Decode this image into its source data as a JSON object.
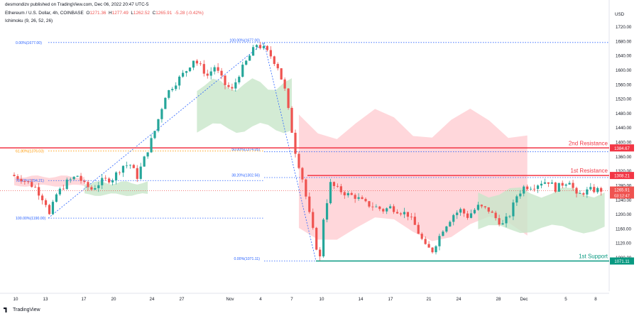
{
  "header": {
    "publisher": "desmondizv published on TradingView.com, Dec 06, 2022 20:47 UTC-5",
    "symbol": "Ethereum / U.S. Dollar, 4h, COINBASE",
    "open_label": "O",
    "open": "1271.36",
    "high_label": "H",
    "high": "1277.49",
    "low_label": "L",
    "low": "1262.52",
    "close_label": "C",
    "close": "1265.91",
    "change": "-5.28 (-0.42%)",
    "indicator": "Ichimoku (9, 26, 52, 26)",
    "currency": "USD"
  },
  "footer": {
    "brand": "TradingView"
  },
  "colors": {
    "up": "#26a69a",
    "down": "#ef5350",
    "fib_line": "#2962ff",
    "resistance": "#f23645",
    "support": "#089981",
    "cloud_bull": "#c8e6c9",
    "cloud_bear": "#ffcdd2"
  },
  "chart_data": {
    "type": "candlestick",
    "x_axis_labels": [
      "10",
      "13",
      "17",
      "20",
      "24",
      "27",
      "Nov",
      "4",
      "7",
      "10",
      "14",
      "17",
      "21",
      "24",
      "28",
      "Dec",
      "5",
      "8"
    ],
    "y_axis_ticks": [
      1080,
      1120,
      1160,
      1200,
      1240,
      1280,
      1320,
      1360,
      1400,
      1440,
      1480,
      1520,
      1560,
      1600,
      1640,
      1680,
      1720
    ],
    "ylim": [
      1060,
      1745
    ],
    "price_path": [
      [
        0,
        1310
      ],
      [
        3,
        1300
      ],
      [
        7,
        1275
      ],
      [
        10,
        1232
      ],
      [
        11,
        1198
      ],
      [
        13,
        1255
      ],
      [
        16,
        1290
      ],
      [
        19,
        1308
      ],
      [
        21,
        1282
      ],
      [
        23,
        1270
      ],
      [
        26,
        1293
      ],
      [
        29,
        1300
      ],
      [
        31,
        1325
      ],
      [
        32,
        1336
      ],
      [
        34,
        1338
      ],
      [
        36,
        1305
      ],
      [
        39,
        1380
      ],
      [
        41,
        1432
      ],
      [
        44,
        1530
      ],
      [
        46,
        1555
      ],
      [
        48,
        1578
      ],
      [
        50,
        1600
      ],
      [
        52,
        1630
      ],
      [
        54,
        1610
      ],
      [
        56,
        1585
      ],
      [
        58,
        1610
      ],
      [
        61,
        1560
      ],
      [
        63,
        1545
      ],
      [
        65,
        1590
      ],
      [
        68,
        1640
      ],
      [
        70,
        1672
      ],
      [
        72,
        1660
      ],
      [
        74,
        1640
      ],
      [
        76,
        1610
      ],
      [
        78,
        1545
      ],
      [
        81,
        1375
      ],
      [
        83,
        1300
      ],
      [
        85,
        1200
      ],
      [
        87,
        1110
      ],
      [
        88,
        1080
      ],
      [
        89,
        1190
      ],
      [
        91,
        1285
      ],
      [
        93,
        1270
      ],
      [
        96,
        1255
      ],
      [
        98,
        1250
      ],
      [
        101,
        1230
      ],
      [
        104,
        1220
      ],
      [
        106,
        1212
      ],
      [
        108,
        1220
      ],
      [
        110,
        1212
      ],
      [
        113,
        1200
      ],
      [
        115,
        1170
      ],
      [
        118,
        1110
      ],
      [
        120,
        1100
      ],
      [
        123,
        1160
      ],
      [
        126,
        1200
      ],
      [
        128,
        1212
      ],
      [
        130,
        1195
      ],
      [
        133,
        1222
      ],
      [
        136,
        1212
      ],
      [
        138,
        1190
      ],
      [
        140,
        1172
      ],
      [
        142,
        1200
      ],
      [
        144,
        1252
      ],
      [
        146,
        1276
      ],
      [
        149,
        1280
      ],
      [
        151,
        1290
      ],
      [
        153,
        1292
      ],
      [
        155,
        1272
      ],
      [
        157,
        1285
      ],
      [
        159,
        1295
      ],
      [
        161,
        1250
      ],
      [
        163,
        1262
      ],
      [
        165,
        1268
      ]
    ],
    "price_range": [
      1071.11,
      1677.0
    ],
    "fibonacci_levels_left": [
      {
        "label": "0.00%(1677.00)",
        "price": 1677.0
      },
      {
        "label": "61.80%(1376.03)",
        "price": 1376.03
      },
      {
        "label": "78.60%(1294.21)",
        "price": 1294.21
      },
      {
        "label": "100.00%(1190.00)",
        "price": 1190.0
      }
    ],
    "fibonacci_levels_right": [
      {
        "label": "100.00%(1677.00)",
        "price": 1677.0
      },
      {
        "label": "50.00%(1374.05)",
        "price": 1374.05
      },
      {
        "label": "38.20%(1302.56)",
        "price": 1302.56
      },
      {
        "label": "0.00%(1071.11)",
        "price": 1071.11
      }
    ],
    "levels": [
      {
        "name": "2nd Resistance",
        "price": 1384.67,
        "price_label": "1384.67",
        "color": "#f23645"
      },
      {
        "name": "1st Resistance",
        "price": 1308.21,
        "price_label": "1308.21",
        "color": "#f23645"
      },
      {
        "name": "1st Support",
        "price": 1071.11,
        "price_label": "1071.11",
        "color": "#089981"
      }
    ],
    "current_price": {
      "label": "1265.91",
      "countdown": "03:12:47",
      "price": 1265.91
    },
    "ichimoku_cloud": [
      {
        "from": 0,
        "to": 20,
        "top": 1305,
        "bottom": 1280,
        "color": "bear"
      },
      {
        "from": 20,
        "to": 38,
        "top": 1288,
        "bottom": 1255,
        "color": "bull"
      },
      {
        "from": 52,
        "to": 79,
        "top": 1560,
        "bottom": 1440,
        "color": "bull"
      },
      {
        "from": 81,
        "to": 146,
        "top": 1450,
        "bottom": 1160,
        "color": "bear"
      },
      {
        "from": 132,
        "to": 168,
        "top": 1262,
        "bottom": 1160,
        "color": "bull"
      }
    ]
  }
}
